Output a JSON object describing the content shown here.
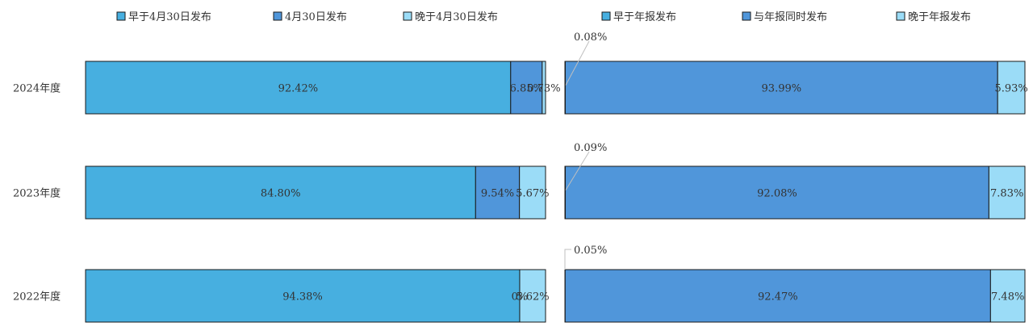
{
  "chart_data": [
    {
      "type": "bar",
      "orientation": "horizontal",
      "stacked": true,
      "normalized": true,
      "categories": [
        "2024年度",
        "2023年度",
        "2022年度"
      ],
      "series": [
        {
          "name": "早于4月30日发布",
          "color": "#47AFE0",
          "values": [
            92.42,
            84.8,
            94.38
          ],
          "labels": [
            "92.42%",
            "84.80%",
            "94.38%"
          ]
        },
        {
          "name": "4月30日发布",
          "color": "#5096DA",
          "values": [
            6.85,
            9.54,
            0.0
          ],
          "labels": [
            "6.85%",
            "9.54%",
            "0%"
          ]
        },
        {
          "name": "晚于4月30日发布",
          "color": "#9BDCF7",
          "values": [
            0.73,
            5.67,
            5.62
          ],
          "labels": [
            "0.73%",
            "5.67%",
            "5.62%"
          ]
        }
      ],
      "legend_position": "top",
      "grid": false
    },
    {
      "type": "bar",
      "orientation": "horizontal",
      "stacked": true,
      "normalized": true,
      "categories": [
        "2024年度",
        "2023年度",
        "2022年度"
      ],
      "series": [
        {
          "name": "早于年报发布",
          "color": "#47AFE0",
          "values": [
            0.08,
            0.09,
            0.05
          ],
          "labels": [
            "0.08%",
            "0.09%",
            "0.05%"
          ]
        },
        {
          "name": "与年报同时发布",
          "color": "#5096DA",
          "values": [
            93.99,
            92.08,
            92.47
          ],
          "labels": [
            "93.99%",
            "92.08%",
            "92.47%"
          ]
        },
        {
          "name": "晚于年报发布",
          "color": "#9BDCF7",
          "values": [
            5.93,
            7.83,
            7.48
          ],
          "labels": [
            "5.93%",
            "7.83%",
            "7.48%"
          ]
        }
      ],
      "legend_position": "top",
      "grid": false
    }
  ]
}
